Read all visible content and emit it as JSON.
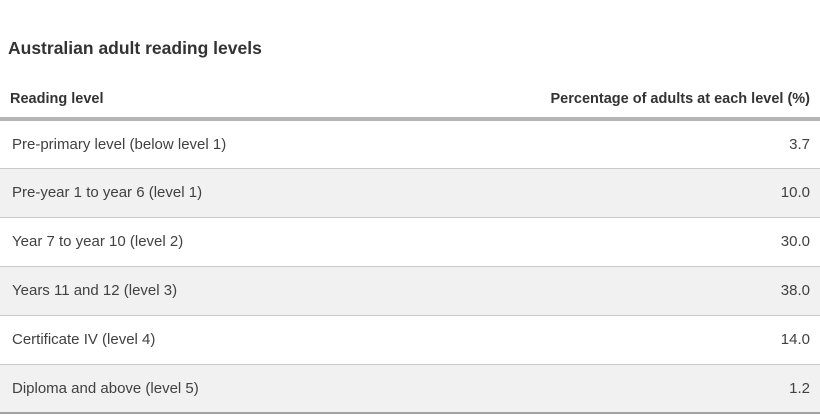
{
  "title": "Australian adult reading levels",
  "table": {
    "columns": [
      {
        "label": "Reading level",
        "align": "left"
      },
      {
        "label": "Percentage of adults at each level (%)",
        "align": "right"
      }
    ],
    "rows": [
      {
        "level": "Pre-primary level (below level 1)",
        "percentage": "3.7"
      },
      {
        "level": "Pre-year 1 to year 6 (level 1)",
        "percentage": "10.0"
      },
      {
        "level": "Year 7 to year 10 (level 2)",
        "percentage": "30.0"
      },
      {
        "level": "Years 11 and 12 (level 3)",
        "percentage": "38.0"
      },
      {
        "level": "Certificate IV (level 4)",
        "percentage": "14.0"
      },
      {
        "level": "Diploma and above (level 5)",
        "percentage": "1.2"
      }
    ]
  },
  "colors": {
    "page-bg": "#ffffff",
    "heading-text": "#333333",
    "cell-text": "#414141",
    "header-rule": "#b5b5b5",
    "row-border": "#c9c9c9",
    "row-alt": "#f1f1f1",
    "table-bottom-border": "#a3a3a3"
  },
  "chart_data": {
    "type": "table",
    "title": "Australian adult reading levels",
    "columns": [
      "Reading level",
      "Percentage of adults at each level (%)"
    ],
    "categories": [
      "Pre-primary level (below level 1)",
      "Pre-year 1 to year 6 (level 1)",
      "Year 7 to year 10 (level 2)",
      "Years 11 and 12 (level 3)",
      "Certificate IV (level 4)",
      "Diploma and above (level 5)"
    ],
    "values": [
      3.7,
      10.0,
      30.0,
      38.0,
      14.0,
      1.2
    ],
    "value_unit": "%"
  }
}
